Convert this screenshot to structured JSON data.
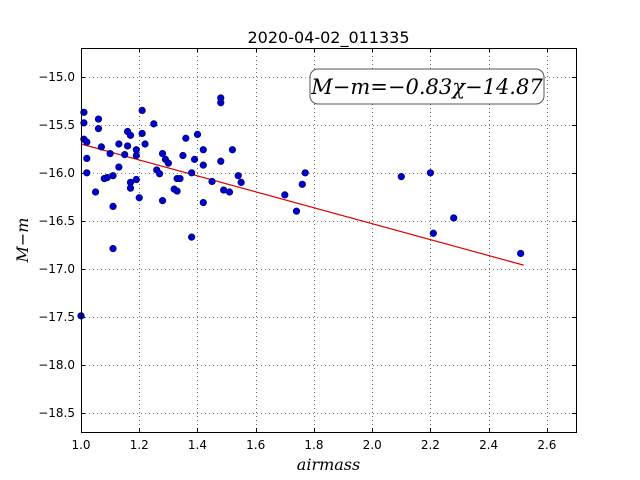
{
  "chart_data": {
    "type": "scatter",
    "title": "2020-04-02_011335",
    "xlabel": "airmass",
    "ylabel": "M−m",
    "xlim": [
      1.0,
      2.7
    ],
    "ylim": [
      -14.7,
      -18.7
    ],
    "y_inverted": true,
    "xticks": [
      1.0,
      1.2,
      1.4,
      1.6,
      1.8,
      2.0,
      2.2,
      2.4,
      2.6
    ],
    "xtick_labels": [
      "1.0",
      "1.2",
      "1.4",
      "1.6",
      "1.8",
      "2.0",
      "2.2",
      "2.4",
      "2.6"
    ],
    "yticks": [
      -15.0,
      -15.5,
      -16.0,
      -16.5,
      -17.0,
      -17.5,
      -18.0,
      -18.5
    ],
    "ytick_labels": [
      "−15.0",
      "−15.5",
      "−16.0",
      "−16.5",
      "−17.0",
      "−17.5",
      "−18.0",
      "−18.5"
    ],
    "grid": true,
    "annotation": "M−m=−0.83χ−14.87",
    "colors": {
      "points": "#0000cc",
      "fit": "#dd0000"
    },
    "fit_line": {
      "slope": -0.83,
      "intercept": -14.87,
      "x_range": [
        1.0,
        2.52
      ]
    },
    "points": [
      [
        1.0,
        -17.49
      ],
      [
        1.01,
        -15.37
      ],
      [
        1.01,
        -15.48
      ],
      [
        1.01,
        -15.65
      ],
      [
        1.02,
        -15.68
      ],
      [
        1.02,
        -15.85
      ],
      [
        1.02,
        -16.0
      ],
      [
        1.05,
        -16.2
      ],
      [
        1.06,
        -15.44
      ],
      [
        1.06,
        -15.54
      ],
      [
        1.07,
        -15.73
      ],
      [
        1.08,
        -16.06
      ],
      [
        1.09,
        -16.05
      ],
      [
        1.1,
        -15.8
      ],
      [
        1.11,
        -16.03
      ],
      [
        1.11,
        -16.35
      ],
      [
        1.11,
        -16.79
      ],
      [
        1.13,
        -15.94
      ],
      [
        1.13,
        -15.7
      ],
      [
        1.15,
        -15.81
      ],
      [
        1.16,
        -15.72
      ],
      [
        1.16,
        -15.57
      ],
      [
        1.17,
        -15.61
      ],
      [
        1.17,
        -16.1
      ],
      [
        1.17,
        -16.16
      ],
      [
        1.19,
        -15.76
      ],
      [
        1.19,
        -15.82
      ],
      [
        1.19,
        -16.07
      ],
      [
        1.2,
        -16.26
      ],
      [
        1.21,
        -15.35
      ],
      [
        1.21,
        -15.59
      ],
      [
        1.22,
        -15.7
      ],
      [
        1.25,
        -15.49
      ],
      [
        1.26,
        -15.97
      ],
      [
        1.27,
        -16.01
      ],
      [
        1.28,
        -16.29
      ],
      [
        1.28,
        -15.8
      ],
      [
        1.29,
        -15.86
      ],
      [
        1.3,
        -15.9
      ],
      [
        1.32,
        -16.17
      ],
      [
        1.33,
        -16.19
      ],
      [
        1.33,
        -16.06
      ],
      [
        1.34,
        -16.06
      ],
      [
        1.35,
        -15.82
      ],
      [
        1.36,
        -15.64
      ],
      [
        1.38,
        -16.0
      ],
      [
        1.38,
        -16.67
      ],
      [
        1.39,
        -15.86
      ],
      [
        1.4,
        -15.6
      ],
      [
        1.42,
        -15.76
      ],
      [
        1.42,
        -15.92
      ],
      [
        1.42,
        -16.31
      ],
      [
        1.45,
        -16.09
      ],
      [
        1.48,
        -15.22
      ],
      [
        1.48,
        -15.27
      ],
      [
        1.48,
        -15.88
      ],
      [
        1.49,
        -16.18
      ],
      [
        1.51,
        -16.2
      ],
      [
        1.52,
        -15.76
      ],
      [
        1.54,
        -16.03
      ],
      [
        1.55,
        -16.1
      ],
      [
        1.7,
        -16.23
      ],
      [
        1.74,
        -16.4
      ],
      [
        1.76,
        -16.12
      ],
      [
        1.77,
        -16.0
      ],
      [
        2.1,
        -16.04
      ],
      [
        2.2,
        -16.0
      ],
      [
        2.21,
        -16.63
      ],
      [
        2.28,
        -16.47
      ],
      [
        2.51,
        -16.84
      ]
    ]
  }
}
